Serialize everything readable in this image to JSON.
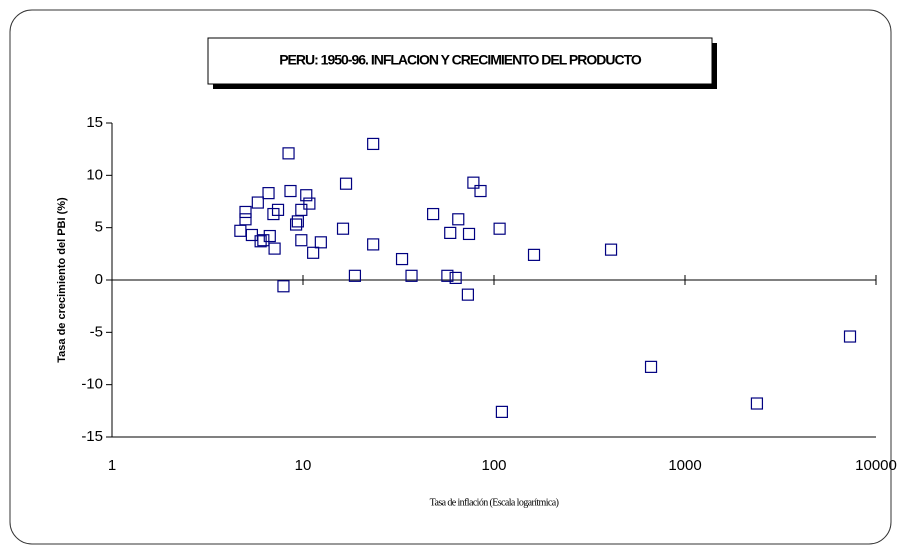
{
  "chart_data": {
    "type": "scatter",
    "title": "PERU: 1950-96. INFLACION Y CRECIMIENTO DEL PRODUCTO",
    "x_label": "Tasa de inflación (Escala logarítmica)",
    "y_label": "Tasa de crecimiento del PBI (%)",
    "x_scale": "log",
    "xlim": [
      1,
      10000
    ],
    "xticks": [
      1,
      10,
      100,
      1000,
      10000
    ],
    "ylim": [
      -15,
      15
    ],
    "yticks": [
      -15,
      -10,
      -5,
      0,
      5,
      10,
      15
    ],
    "series": [
      {
        "color": "#000080",
        "x": [
          4.7,
          5.0,
          5.0,
          5.4,
          5.8,
          6.0,
          6.2,
          6.6,
          6.7,
          7.0,
          7.4,
          7.1,
          7.9,
          8.4,
          8.6,
          9.2,
          9.4,
          9.8,
          9.8,
          10.4,
          10.8,
          11.3,
          12.4,
          16.2,
          16.8,
          18.7,
          23.3,
          23.3,
          33,
          37,
          48,
          57,
          59,
          63,
          65,
          73,
          74,
          78,
          85,
          107,
          110,
          162,
          410,
          664,
          2380,
          7310
        ],
        "values": [
          4.7,
          6.5,
          5.8,
          4.3,
          7.4,
          3.7,
          3.8,
          8.3,
          4.2,
          6.3,
          6.7,
          3.0,
          -0.6,
          12.1,
          8.5,
          5.3,
          5.6,
          6.7,
          3.8,
          8.1,
          7.3,
          2.6,
          3.6,
          4.9,
          9.2,
          0.4,
          13.0,
          3.4,
          2.0,
          0.4,
          6.3,
          0.4,
          4.5,
          0.2,
          5.8,
          -1.4,
          4.4,
          9.3,
          8.5,
          4.9,
          -12.6,
          2.4,
          2.9,
          -8.3,
          -11.8,
          -5.4
        ]
      }
    ]
  }
}
